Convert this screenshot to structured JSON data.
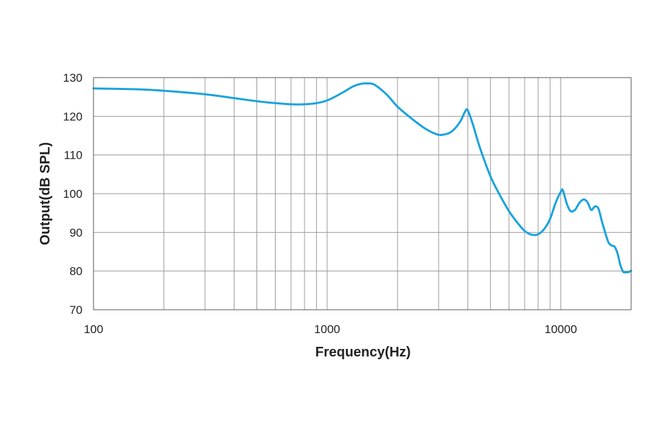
{
  "chart_data": {
    "type": "line",
    "title": "",
    "xlabel": "Frequency(Hz)",
    "ylabel": "Output(dB SPL)",
    "x_scale": "log",
    "xlim": [
      100,
      20000
    ],
    "ylim": [
      70,
      130
    ],
    "x_tick_labels": [
      "100",
      "1000",
      "10000"
    ],
    "y_tick_labels": [
      "70",
      "80",
      "90",
      "100",
      "110",
      "120",
      "130"
    ],
    "grid": true,
    "legend": "none",
    "series": [
      {
        "color": "#1aa3dc",
        "x": [
          100,
          150,
          200,
          300,
          400,
          500,
          600,
          700,
          800,
          900,
          1000,
          1100,
          1200,
          1300,
          1400,
          1500,
          1600,
          1800,
          2000,
          2300,
          2600,
          2900,
          3100,
          3400,
          3700,
          3900,
          4000,
          4200,
          4500,
          5000,
          5500,
          6000,
          6500,
          7000,
          7500,
          8000,
          8500,
          9000,
          9500,
          10000,
          10200,
          10600,
          11000,
          11500,
          12000,
          12500,
          13000,
          13500,
          14000,
          14500,
          15000,
          15500,
          16000,
          16500,
          17000,
          17500,
          18000,
          18500,
          19000,
          19500,
          20000
        ],
        "y": [
          127.2,
          127.0,
          126.6,
          125.7,
          124.7,
          123.9,
          123.4,
          123.1,
          123.1,
          123.4,
          124.1,
          125.3,
          126.6,
          127.8,
          128.4,
          128.5,
          128.1,
          125.6,
          122.5,
          119.4,
          117.0,
          115.5,
          115.2,
          116.0,
          118.5,
          121.3,
          121.5,
          118.0,
          112.0,
          104.5,
          99.5,
          95.5,
          92.6,
          90.4,
          89.4,
          89.5,
          90.9,
          93.5,
          97.6,
          100.5,
          100.9,
          97.5,
          95.5,
          95.8,
          97.6,
          98.5,
          97.8,
          95.8,
          96.7,
          96.1,
          92.8,
          89.9,
          87.4,
          86.6,
          86.3,
          84.5,
          81.5,
          79.8,
          79.7,
          79.7,
          80.1
        ]
      }
    ]
  }
}
